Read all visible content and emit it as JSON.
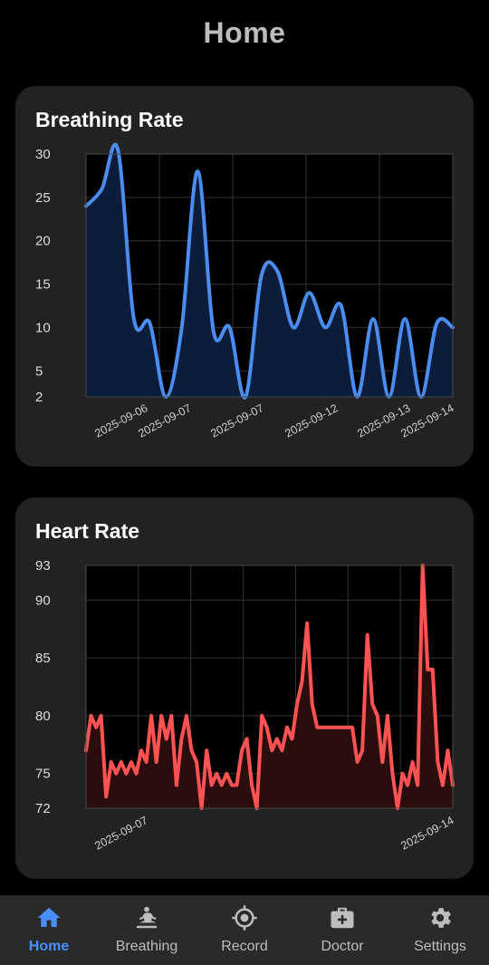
{
  "header": {
    "title": "Home"
  },
  "colors": {
    "breathing": "#4a8cf0",
    "breathing_fill": "#0c1c3b",
    "heart": "#ff5252",
    "heart_fill": "#2b0d0d",
    "nav_active": "#4a8fff",
    "nav_inactive": "#bdbdbd"
  },
  "breathing_card": {
    "title": "Breathing Rate",
    "chart_data": {
      "type": "area",
      "yticks": [
        30,
        25,
        20,
        15,
        10,
        5,
        2
      ],
      "ylim": [
        2,
        30
      ],
      "xticks": [
        "2025-09-06",
        "2025-09-07",
        "2025-09-07",
        "2025-09-12",
        "2025-09-13",
        "2025-09-14"
      ],
      "grid": true,
      "values": [
        24,
        26,
        30.5,
        11,
        10.5,
        2,
        10,
        28,
        9.5,
        10,
        2,
        16,
        16.5,
        10,
        14,
        10,
        12.5,
        2,
        11,
        2,
        11,
        2,
        10.5,
        10
      ]
    }
  },
  "heart_card": {
    "title": "Heart Rate",
    "chart_data": {
      "type": "area",
      "yticks": [
        93,
        90,
        85,
        80,
        75,
        72
      ],
      "ylim": [
        72,
        93
      ],
      "xticks": [
        "2025-09-07",
        "2025-09-14"
      ],
      "grid": true,
      "values": [
        77,
        80,
        79,
        80,
        73,
        76,
        75,
        76,
        75,
        76,
        75,
        77,
        76,
        80,
        76,
        80,
        78,
        80,
        74,
        78,
        80,
        77,
        76,
        72,
        77,
        74,
        75,
        74,
        75,
        74,
        74,
        77,
        78,
        74,
        72,
        80,
        79,
        77,
        78,
        77,
        79,
        78,
        81,
        83,
        88,
        81,
        79,
        79,
        79,
        79,
        79,
        79,
        79,
        79,
        76,
        77,
        87,
        81,
        80,
        76,
        80,
        75,
        72,
        75,
        74,
        76,
        74,
        93,
        84,
        84,
        76,
        74,
        77,
        74
      ]
    }
  },
  "nav": {
    "items": [
      {
        "label": "Home",
        "icon": "home-icon",
        "active": true
      },
      {
        "label": "Breathing",
        "icon": "meditation-icon",
        "active": false
      },
      {
        "label": "Record",
        "icon": "target-icon",
        "active": false
      },
      {
        "label": "Doctor",
        "icon": "medical-kit-icon",
        "active": false
      },
      {
        "label": "Settings",
        "icon": "gear-icon",
        "active": false
      }
    ]
  }
}
